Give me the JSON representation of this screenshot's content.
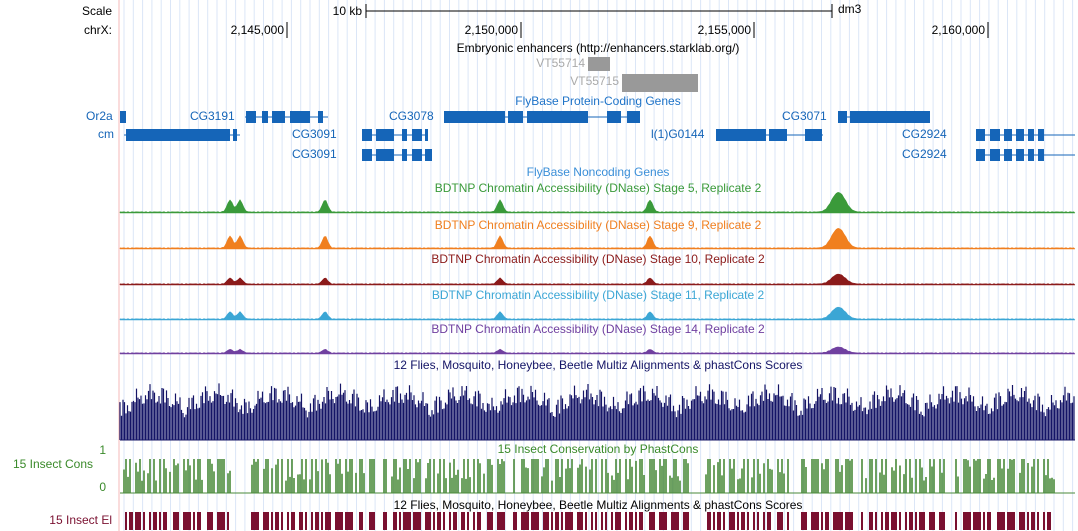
{
  "header": {
    "scale_label": "Scale",
    "chrom_label": "chrX:",
    "scale_bar_label": "10 kb",
    "assembly": "dm3",
    "positions": [
      "2,145,000",
      "2,150,000",
      "2,155,000",
      "2,160,000"
    ]
  },
  "enhancers": {
    "title": "Embryonic enhancers (http://enhancers.starklab.org/)",
    "items": [
      "VT55714",
      "VT55715"
    ]
  },
  "genes": {
    "title": "FlyBase Protein-Coding Genes",
    "labels": [
      "Or2a",
      "cm",
      "CG3191",
      "CG3091",
      "CG3091",
      "CG3078",
      "l(1)G0144",
      "CG3071",
      "CG2924",
      "CG2924"
    ]
  },
  "noncoding": {
    "title": "FlyBase Noncoding Genes"
  },
  "accessibility": [
    "BDTNP Chromatin Accessibility (DNase) Stage 5, Replicate 2",
    "BDTNP Chromatin Accessibility (DNase) Stage 9, Replicate 2",
    "BDTNP Chromatin Accessibility (DNase) Stage 10, Replicate 2",
    "BDTNP Chromatin Accessibility (DNase) Stage 11, Replicate 2",
    "BDTNP Chromatin Accessibility (DNase) Stage 14, Replicate 2"
  ],
  "multiz": {
    "title": "12 Flies, Mosquito, Honeybee, Beetle Multiz Alignments & phastCons Scores"
  },
  "phastcons": {
    "title": "15 Insect Conservation by PhastCons",
    "side_label": "15 Insect Cons",
    "max": 1,
    "min": 0
  },
  "elements": {
    "title": "12 Flies, Mosquito, Honeybee, Beetle Multiz Alignments & phastCons Scores",
    "side_label": "15 Insect El"
  }
}
